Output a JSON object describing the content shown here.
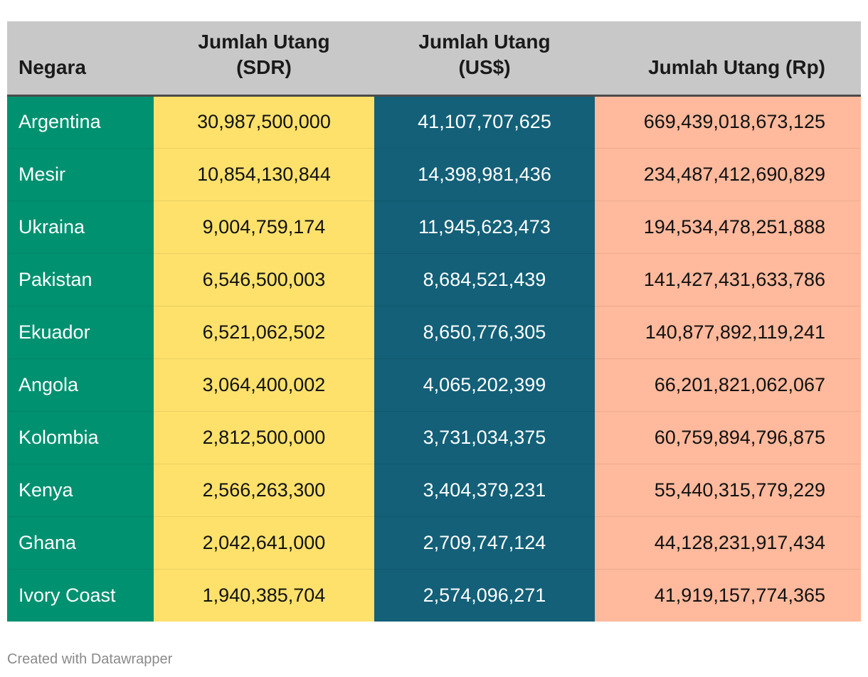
{
  "chart_data": {
    "type": "table",
    "columns": [
      "Negara",
      "Jumlah Utang (SDR)",
      "Jumlah Utang (US$)",
      "Jumlah Utang (Rp)"
    ],
    "header_lines": [
      [
        "Negara"
      ],
      [
        "Jumlah Utang",
        "(SDR)"
      ],
      [
        "Jumlah Utang",
        "(US$)"
      ],
      [
        "Jumlah Utang (Rp)"
      ]
    ],
    "rows": [
      [
        "Argentina",
        "30,987,500,000",
        "41,107,707,625",
        "669,439,018,673,125"
      ],
      [
        "Mesir",
        "10,854,130,844",
        "14,398,981,436",
        "234,487,412,690,829"
      ],
      [
        "Ukraina",
        "9,004,759,174",
        "11,945,623,473",
        "194,534,478,251,888"
      ],
      [
        "Pakistan",
        "6,546,500,003",
        "8,684,521,439",
        "141,427,431,633,786"
      ],
      [
        "Ekuador",
        "6,521,062,502",
        "8,650,776,305",
        "140,877,892,119,241"
      ],
      [
        "Angola",
        "3,064,400,002",
        "4,065,202,399",
        "66,201,821,062,067"
      ],
      [
        "Kolombia",
        "2,812,500,000",
        "3,731,034,375",
        "60,759,894,796,875"
      ],
      [
        "Kenya",
        "2,566,263,300",
        "3,404,379,231",
        "55,440,315,779,229"
      ],
      [
        "Ghana",
        "2,042,641,000",
        "2,709,747,124",
        "44,128,231,917,434"
      ],
      [
        "Ivory Coast",
        "1,940,385,704",
        "2,574,096,271",
        "41,919,157,774,365"
      ]
    ],
    "column_colors": [
      "#009170",
      "#fde16b",
      "#136078",
      "#ffb99c"
    ],
    "header_color": "#c8c8c8"
  },
  "footer": {
    "credit": "Created with Datawrapper"
  }
}
